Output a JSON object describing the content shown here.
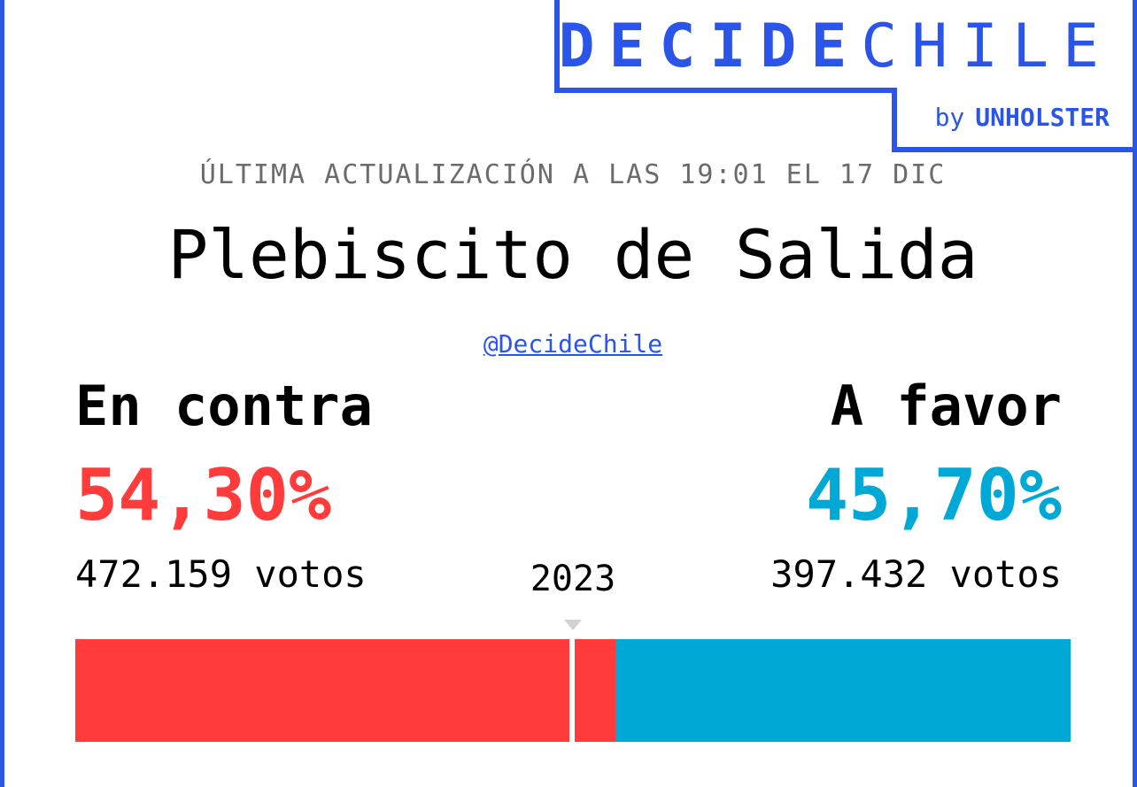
{
  "brand": {
    "name_bold": "DECIDE",
    "name_light": "CHILE",
    "by": "by",
    "org": "UNHOLSTER"
  },
  "updated_text": "ÚLTIMA ACTUALIZACIÓN A LAS 19:01 EL 17 DIC",
  "title": "Plebiscito de Salida",
  "handle": "@DecideChile",
  "left_option": {
    "label": "En contra",
    "percent": "54,30%",
    "votes": "472.159 votos",
    "share": 54.3,
    "color": "#ff3b3b"
  },
  "right_option": {
    "label": "A favor",
    "percent": "45,70%",
    "votes": "397.432 votos",
    "share": 45.7,
    "color": "#00a8d6"
  },
  "year": "2023",
  "colors": {
    "accent": "#2b55e8",
    "against": "#ff3b3b",
    "favor": "#00a8d6",
    "muted": "#6b6b6b"
  }
}
